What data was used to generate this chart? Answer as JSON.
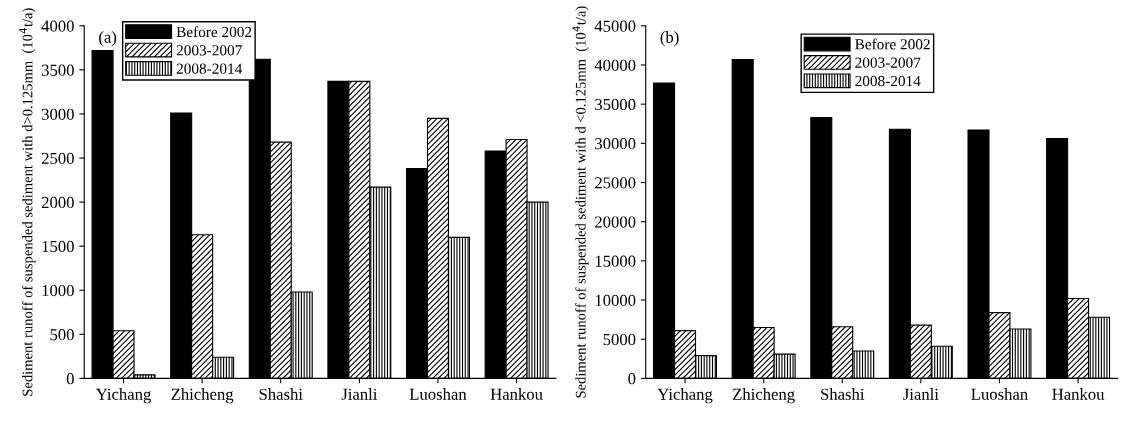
{
  "chart_data": [
    {
      "type": "bar",
      "ylabel": "Sediment runoff of suspended sediment with d>0.125mm  (10$^{4}$t/a)",
      "annotations": [
        "(a)"
      ],
      "categories": [
        "Yichang",
        "Zhicheng",
        "Shashi",
        "Jianli",
        "Luoshan",
        "Hankou"
      ],
      "series": [
        {
          "name": "Before 2002",
          "color": "#000000",
          "values": [
            3720,
            3010,
            3620,
            3370,
            2380,
            2580
          ]
        },
        {
          "name": "2003-2007",
          "color": "#000000",
          "values": [
            540,
            1630,
            2680,
            3370,
            2950,
            2710
          ]
        },
        {
          "name": "2008-2014",
          "color": "#000000",
          "values": [
            40,
            240,
            980,
            2170,
            1600,
            2000
          ]
        }
      ],
      "ylim": [
        0,
        4000
      ],
      "yticks": [
        0,
        500,
        1000,
        1500,
        2000,
        2500,
        3000,
        3500,
        4000
      ],
      "grid": false,
      "legend": "top left"
    },
    {
      "type": "bar",
      "ylabel": "Sediment runoff of suspended sediment with d <0.125mm  (10$^{4}$t/a)",
      "annotations": [
        "(b)"
      ],
      "categories": [
        "Yichang",
        "Zhicheng",
        "Shashi",
        "Jianli",
        "Luoshan",
        "Hankou"
      ],
      "series": [
        {
          "name": "Before 2002",
          "color": "#000000",
          "values": [
            37700,
            40700,
            33300,
            31800,
            31700,
            30600
          ]
        },
        {
          "name": "2003-2007",
          "color": "#000000",
          "values": [
            6100,
            6500,
            6600,
            6800,
            8400,
            10200
          ]
        },
        {
          "name": "2008-2014",
          "color": "#000000",
          "values": [
            2900,
            3100,
            3500,
            4100,
            6300,
            7800
          ]
        }
      ],
      "ylim": [
        0,
        45000
      ],
      "yticks": [
        0,
        5000,
        10000,
        15000,
        20000,
        25000,
        30000,
        35000,
        40000,
        45000
      ],
      "grid": false,
      "legend": "top"
    }
  ]
}
